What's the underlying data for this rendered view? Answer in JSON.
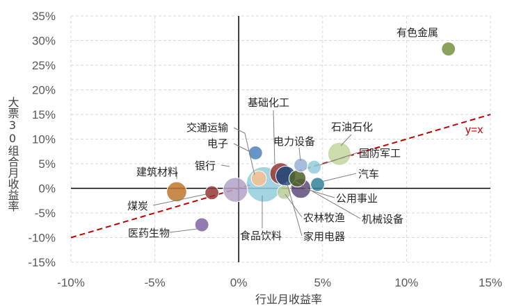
{
  "chart_data": {
    "type": "scatter",
    "title": "",
    "xlabel": "行业月收益率",
    "ylabel": "大票30组合月收益率",
    "xlim": [
      -0.1,
      0.15
    ],
    "ylim": [
      -0.15,
      0.35
    ],
    "x_ticks": [
      "-10%",
      "-5%",
      "0%",
      "5%",
      "10%",
      "15%"
    ],
    "y_ticks": [
      "-15%",
      "-10%",
      "-5%",
      "0%",
      "5%",
      "10%",
      "15%",
      "20%",
      "25%",
      "30%",
      "35%"
    ],
    "grid": "dashed",
    "reference_line": {
      "label": "y=x",
      "slope": 1,
      "intercept": 0,
      "color": "#c00000"
    },
    "points": [
      {
        "name": "有色金属",
        "x": 0.125,
        "y": 0.283,
        "size": 0.9,
        "color": "#76923c"
      },
      {
        "name": "石油石化",
        "x": 0.06,
        "y": 0.07,
        "size": 1.5,
        "color": "#c3d69b"
      },
      {
        "name": "国防军工",
        "x": 0.045,
        "y": 0.043,
        "size": 0.9,
        "color": "#92cddc"
      },
      {
        "name": "电力设备",
        "x": 0.037,
        "y": 0.047,
        "size": 0.9,
        "color": "#95b3d7"
      },
      {
        "name": "汽车",
        "x": 0.047,
        "y": 0.008,
        "size": 0.9,
        "color": "#31849b"
      },
      {
        "name": "公用事业",
        "x": 0.037,
        "y": 0.0,
        "size": 1.3,
        "color": "#604a7b"
      },
      {
        "name": "机械设备",
        "x": 0.035,
        "y": 0.02,
        "size": 1.1,
        "color": "#4f6228"
      },
      {
        "name": "农林牧渔",
        "x": 0.027,
        "y": -0.008,
        "size": 0.9,
        "color": "#b9cd96"
      },
      {
        "name": "家用电器",
        "x": 0.028,
        "y": 0.025,
        "size": 1.3,
        "color": "#1f497d"
      },
      {
        "name": "基础化工",
        "x": 0.025,
        "y": 0.03,
        "size": 1.4,
        "color": "#943634"
      },
      {
        "name": "食品饮料",
        "x": 0.015,
        "y": 0.008,
        "size": 2.3,
        "color": "#93cddd"
      },
      {
        "name": "电子",
        "x": 0.01,
        "y": 0.072,
        "size": 0.9,
        "color": "#4f81bd"
      },
      {
        "name": "交通运输",
        "x": 0.012,
        "y": 0.02,
        "size": 1.0,
        "color": "#fac08f"
      },
      {
        "name": "银行",
        "x": -0.002,
        "y": -0.003,
        "size": 1.6,
        "color": "#b3a2c7"
      },
      {
        "name": "建筑材料",
        "x": -0.037,
        "y": -0.007,
        "size": 1.3,
        "color": "#c0752d"
      },
      {
        "name": "煤炭",
        "x": -0.016,
        "y": -0.009,
        "size": 0.9,
        "color": "#953735"
      },
      {
        "name": "医药生物",
        "x": -0.022,
        "y": -0.074,
        "size": 0.9,
        "color": "#8064a2"
      }
    ]
  }
}
